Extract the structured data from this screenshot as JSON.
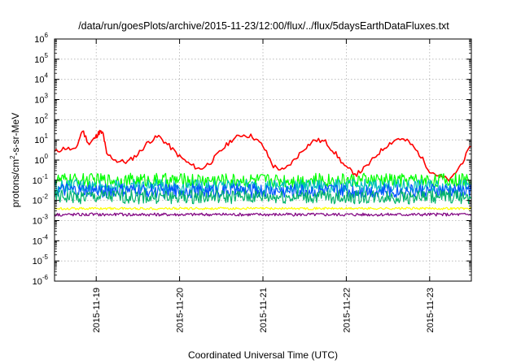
{
  "chart_data": {
    "type": "line",
    "title": "/data/run/goesPlots/archive/2015-11-23/12:00/flux/../flux/5daysEarthDataFluxes.txt",
    "xlabel": "Coordinated Universal Time (UTC)",
    "ylabel_parts": [
      "protons/cm",
      "2",
      "-s-sr-MeV"
    ],
    "yscale": "log",
    "ylim": [
      1e-06,
      1000000.0
    ],
    "xlim": [
      "2015-11-18T12:00",
      "2015-11-23T12:00"
    ],
    "grid": true,
    "x_ticks": [
      "2015-11-19",
      "2015-11-20",
      "2015-11-21",
      "2015-11-22",
      "2015-11-23"
    ],
    "y_ticks": [
      {
        "base": "10",
        "exp": "-6"
      },
      {
        "base": "10",
        "exp": "-5"
      },
      {
        "base": "10",
        "exp": "-4"
      },
      {
        "base": "10",
        "exp": "-3"
      },
      {
        "base": "10",
        "exp": "-2"
      },
      {
        "base": "10",
        "exp": "-1"
      },
      {
        "base": "10",
        "exp": "0"
      },
      {
        "base": "10",
        "exp": "1"
      },
      {
        "base": "10",
        "exp": "2"
      },
      {
        "base": "10",
        "exp": "3"
      },
      {
        "base": "10",
        "exp": "4"
      },
      {
        "base": "10",
        "exp": "5"
      },
      {
        "base": "10",
        "exp": "6"
      }
    ],
    "series": [
      {
        "color": "#ff0000",
        "x": [
          "2015-11-18T12:00",
          "2015-11-18T15:00",
          "2015-11-18T18:00",
          "2015-11-18T20:00",
          "2015-11-18T22:00",
          "2015-11-19T00:00",
          "2015-11-19T01:00",
          "2015-11-19T02:00",
          "2015-11-19T03:00",
          "2015-11-19T06:00",
          "2015-11-19T09:00",
          "2015-11-19T12:00",
          "2015-11-19T15:00",
          "2015-11-19T18:00",
          "2015-11-19T21:00",
          "2015-11-20T00:00",
          "2015-11-20T03:00",
          "2015-11-20T06:00",
          "2015-11-20T09:00",
          "2015-11-20T12:00",
          "2015-11-20T15:00",
          "2015-11-20T18:00",
          "2015-11-20T21:00",
          "2015-11-21T00:00",
          "2015-11-21T03:00",
          "2015-11-21T06:00",
          "2015-11-21T09:00",
          "2015-11-21T12:00",
          "2015-11-21T15:00",
          "2015-11-21T18:00",
          "2015-11-21T21:00",
          "2015-11-22T00:00",
          "2015-11-22T03:00",
          "2015-11-22T06:00",
          "2015-11-22T09:00",
          "2015-11-22T12:00",
          "2015-11-22T15:00",
          "2015-11-22T18:00",
          "2015-11-22T21:00",
          "2015-11-23T00:00",
          "2015-11-23T03:00",
          "2015-11-23T06:00",
          "2015-11-23T09:00",
          "2015-11-23T12:00"
        ],
        "values": [
          2.5,
          4,
          3,
          30,
          6,
          15,
          25,
          20,
          2,
          0.9,
          0.8,
          2,
          8,
          15,
          5,
          1.5,
          0.6,
          0.35,
          0.8,
          3,
          10,
          18,
          15,
          5,
          0.5,
          0.3,
          1,
          4,
          10,
          8,
          2,
          0.4,
          0.2,
          0.5,
          2,
          6,
          12,
          8,
          2,
          0.3,
          0.15,
          0.1,
          0.6,
          5
        ]
      },
      {
        "color": "#00ff00",
        "x": [
          "2015-11-18T12:00",
          "2015-11-19T12:00",
          "2015-11-20T12:00",
          "2015-11-21T12:00",
          "2015-11-22T12:00",
          "2015-11-23T12:00"
        ],
        "values": [
          0.1,
          0.1,
          0.1,
          0.1,
          0.1,
          0.1
        ]
      },
      {
        "color": "#00bfbf",
        "x": [
          "2015-11-18T12:00",
          "2015-11-19T12:00",
          "2015-11-20T12:00",
          "2015-11-21T12:00",
          "2015-11-22T12:00",
          "2015-11-23T12:00"
        ],
        "values": [
          0.05,
          0.05,
          0.05,
          0.05,
          0.05,
          0.05
        ]
      },
      {
        "color": "#0055ff",
        "x": [
          "2015-11-18T12:00",
          "2015-11-19T12:00",
          "2015-11-20T12:00",
          "2015-11-21T12:00",
          "2015-11-22T12:00",
          "2015-11-23T12:00"
        ],
        "values": [
          0.03,
          0.03,
          0.03,
          0.03,
          0.03,
          0.03
        ]
      },
      {
        "color": "#00b36b",
        "x": [
          "2015-11-18T12:00",
          "2015-11-19T12:00",
          "2015-11-20T12:00",
          "2015-11-21T12:00",
          "2015-11-22T12:00",
          "2015-11-23T12:00"
        ],
        "values": [
          0.015,
          0.015,
          0.015,
          0.015,
          0.015,
          0.015
        ]
      },
      {
        "color": "#ffff00",
        "x": [
          "2015-11-18T12:00",
          "2015-11-19T12:00",
          "2015-11-20T12:00",
          "2015-11-21T12:00",
          "2015-11-22T12:00",
          "2015-11-23T12:00"
        ],
        "values": [
          0.004,
          0.004,
          0.004,
          0.004,
          0.004,
          0.004
        ]
      },
      {
        "color": "#800080",
        "x": [
          "2015-11-18T12:00",
          "2015-11-19T12:00",
          "2015-11-20T12:00",
          "2015-11-21T12:00",
          "2015-11-22T12:00",
          "2015-11-23T12:00"
        ],
        "values": [
          0.002,
          0.002,
          0.002,
          0.002,
          0.002,
          0.002
        ]
      }
    ]
  }
}
